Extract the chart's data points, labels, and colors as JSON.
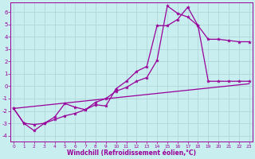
{
  "bg_color": "#c8eef0",
  "line_color": "#990099",
  "grid_color": "#b0d8da",
  "xlabel": "Windchill (Refroidissement éolien,°C)",
  "xlim": [
    -0.3,
    23.3
  ],
  "ylim": [
    -4.5,
    6.8
  ],
  "yticks": [
    -4,
    -3,
    -2,
    -1,
    0,
    1,
    2,
    3,
    4,
    5,
    6
  ],
  "xticks": [
    0,
    1,
    2,
    3,
    4,
    5,
    6,
    7,
    8,
    9,
    10,
    11,
    12,
    13,
    14,
    15,
    16,
    17,
    18,
    19,
    20,
    21,
    22,
    23
  ],
  "curve1_x": [
    0,
    1,
    2,
    3,
    4,
    5,
    6,
    7,
    8,
    9,
    10,
    11,
    12,
    13,
    14,
    15,
    16,
    17,
    18,
    19,
    20,
    21,
    22,
    23
  ],
  "curve1_y": [
    -1.8,
    -3.0,
    -3.1,
    -3.0,
    -2.5,
    -1.4,
    -1.7,
    -1.9,
    -1.5,
    -1.6,
    -0.2,
    0.4,
    1.2,
    1.6,
    4.9,
    4.9,
    5.4,
    6.4,
    4.9,
    3.8,
    3.8,
    3.7,
    3.6,
    3.6
  ],
  "curve2_x": [
    0,
    1,
    2,
    3,
    4,
    5,
    6,
    7,
    8,
    9,
    10,
    11,
    12,
    13,
    14,
    15,
    16,
    17,
    18,
    19,
    20,
    21,
    22,
    23
  ],
  "curve2_y": [
    -1.8,
    -3.0,
    -3.6,
    -3.0,
    -2.7,
    -2.4,
    -2.2,
    -1.9,
    -1.3,
    -1.0,
    -0.4,
    -0.1,
    0.4,
    0.7,
    2.1,
    6.5,
    5.9,
    5.6,
    4.9,
    0.4,
    0.4,
    0.4,
    0.4,
    0.4
  ],
  "line_x": [
    0,
    23
  ],
  "line_y": [
    -1.8,
    0.2
  ],
  "marker_style": "*",
  "marker_size": 3.0,
  "line_width": 0.9,
  "tick_fontsize_x": 4.2,
  "tick_fontsize_y": 5.0,
  "xlabel_fontsize": 5.5
}
